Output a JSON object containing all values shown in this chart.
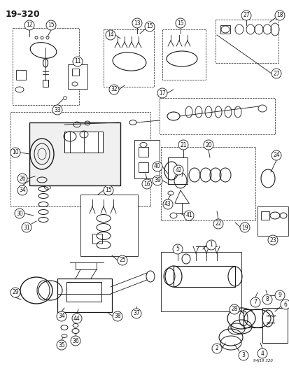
{
  "title": "19–320",
  "bg_color": "#ffffff",
  "line_color": "#1a1a1a",
  "watermark": "94J19 320",
  "fig_width": 4.14,
  "fig_height": 5.33,
  "dpi": 100
}
